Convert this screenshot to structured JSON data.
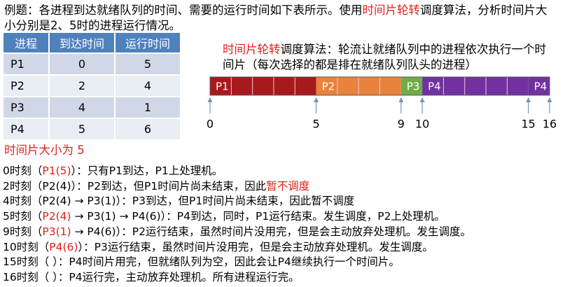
{
  "title": [
    "例题：各进程到达就绪队列的时间、需要的运行时间如下表所示。使用",
    {
      "text": "时间片轮转",
      "color": "#e0201b"
    },
    "调度算法，分析时间片大小分别是2、5时的进程运行情况。"
  ],
  "table": {
    "header": [
      "进程",
      "到达时间",
      "运行时间"
    ],
    "rows": [
      [
        "P1",
        0,
        5
      ],
      [
        "P2",
        2,
        4
      ],
      [
        "P3",
        4,
        1
      ],
      [
        "P4",
        5,
        6
      ]
    ]
  },
  "description": [
    {
      "text": "时间片轮转",
      "color": "#e0201b"
    },
    "调度算法：轮流让就绪队列中的进程依次执行一个时间片（每次选择的都是排在就绪队列队头的进程）"
  ],
  "timeline": {
    "lim": [
      0,
      16
    ],
    "ticks": [
      0,
      5,
      9,
      10,
      15,
      16
    ],
    "segments": [
      {
        "label": "P1",
        "start": 0,
        "end": 5,
        "color": "#a8191d"
      },
      {
        "label": "P2",
        "start": 5,
        "end": 9,
        "color": "#e8823c"
      },
      {
        "label": "P3",
        "start": 9,
        "end": 10,
        "color": "#6fae45"
      },
      {
        "label": "P4",
        "start": 10,
        "end": 15,
        "color": "#7131a1"
      },
      {
        "label": "P4",
        "start": 15,
        "end": 16,
        "color": "#7131a1"
      }
    ]
  },
  "slice_size": [
    {
      "text": "时间片大小为 5",
      "color": "#e0201b"
    }
  ],
  "lines": [
    [
      "0时刻（",
      {
        "text": "P1(5)",
        "color": "#e0201b"
      },
      "）：只有P1到达，P1上处理机。"
    ],
    [
      "2时刻（P2(4)）：P2到达，但P1时间片尚未结束，因此",
      {
        "text": "暂不调度",
        "color": "#e0201b"
      }
    ],
    [
      "4时刻（P2(4) → P3(1)）：P3到达，但P1时间片尚未结束，因此暂不调度"
    ],
    [
      "5时刻（",
      {
        "text": "P2(4)",
        "color": "#e0201b"
      },
      " → P3(1) → P4(6)）：P4到达，同时，P1运行结束。发生调度，P2上处理机。"
    ],
    [
      "9时刻（",
      {
        "text": "P3(1)",
        "color": "#e0201b"
      },
      " → P4(6)）：P2运行结束，虽然时间片没用完，但是会主动放弃处理机。发生调度。"
    ],
    [
      "10时刻（",
      {
        "text": "P4(6)",
        "color": "#e0201b"
      },
      "）：P3运行结束，虽然时间片没用完，但是会主动放弃处理机。发生调度。"
    ],
    [
      "15时刻（  ）：P4时间片用完，但就绪队列为空，因此会让P4继续执行一个时间片。"
    ],
    [
      "16时刻（  ）：P4运行完，主动放弃处理机。所有进程运行完。"
    ]
  ]
}
